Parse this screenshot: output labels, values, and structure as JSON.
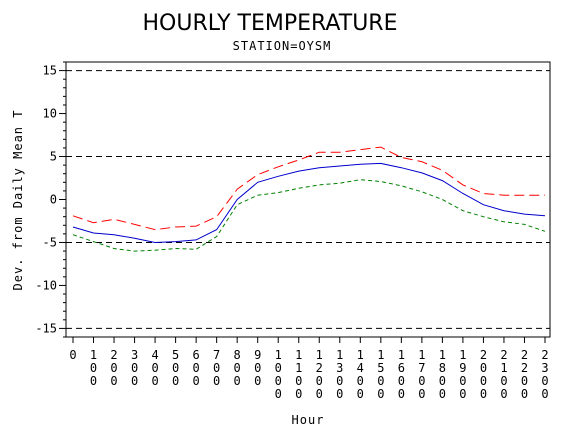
{
  "chart_data": {
    "type": "line",
    "title": "HOURLY TEMPERATURE",
    "subtitle": "STATION=OYSM",
    "xlabel": "Hour",
    "ylabel": "Dev. from Daily Mean T",
    "x": [
      0,
      100,
      200,
      300,
      400,
      500,
      600,
      700,
      800,
      900,
      1000,
      1100,
      1200,
      1300,
      1400,
      1500,
      1600,
      1700,
      1800,
      1900,
      2000,
      2100,
      2200,
      2300
    ],
    "x_tick_labels": [
      "0",
      "100",
      "200",
      "300",
      "400",
      "500",
      "600",
      "700",
      "800",
      "900",
      "1000",
      "1100",
      "1200",
      "1300",
      "1400",
      "1500",
      "1600",
      "1700",
      "1800",
      "1900",
      "2000",
      "2100",
      "2200",
      "2300"
    ],
    "ylim": [
      -16,
      16
    ],
    "y_ticks": [
      -15,
      -10,
      -5,
      0,
      5,
      10,
      15
    ],
    "reference_lines": [
      -15,
      -5,
      5,
      15
    ],
    "grid": false,
    "series": [
      {
        "color": "#0000cc",
        "dash": "solid",
        "values": [
          -3.2,
          -3.9,
          -4.1,
          -4.5,
          -5.0,
          -4.9,
          -4.7,
          -3.5,
          0.0,
          2.0,
          2.7,
          3.3,
          3.7,
          3.9,
          4.1,
          4.2,
          3.7,
          3.1,
          2.2,
          0.7,
          -0.6,
          -1.3,
          -1.7,
          -1.9
        ]
      },
      {
        "color": "#ff0000",
        "dash": "long",
        "values": [
          -1.9,
          -2.7,
          -2.3,
          -2.9,
          -3.5,
          -3.2,
          -3.1,
          -2.0,
          1.2,
          2.9,
          3.8,
          4.6,
          5.5,
          5.5,
          5.8,
          6.1,
          4.9,
          4.4,
          3.4,
          1.7,
          0.7,
          0.5,
          0.5,
          0.5
        ]
      },
      {
        "color": "#008000",
        "dash": "short",
        "values": [
          -4.1,
          -4.9,
          -5.7,
          -6.0,
          -5.9,
          -5.7,
          -5.8,
          -4.3,
          -0.6,
          0.5,
          0.8,
          1.3,
          1.7,
          1.9,
          2.3,
          2.1,
          1.6,
          0.9,
          0.0,
          -1.3,
          -2.0,
          -2.6,
          -2.9,
          -3.7
        ]
      }
    ]
  }
}
